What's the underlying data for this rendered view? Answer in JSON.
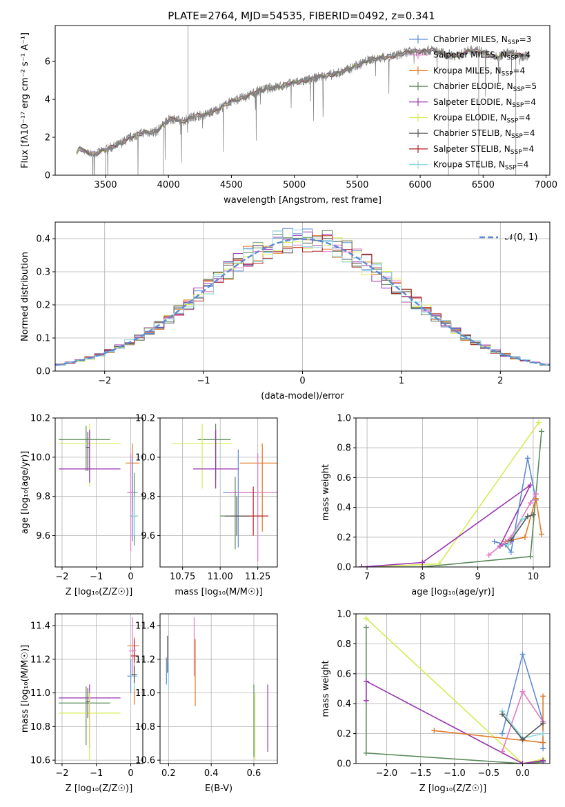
{
  "title": "PLATE=2764, MJD=54535, FIBERID=0492, z=0.341",
  "chart_data": [
    {
      "id": "spectrum",
      "type": "line",
      "xlabel": "wavelength [Angstrom, rest frame]",
      "ylabel": "Flux [f_λ 10^-17 erg cm^-2 s^-1 A^-1]",
      "xlim": [
        3100,
        7030
      ],
      "ylim": [
        0,
        7.9
      ],
      "xticks": [
        3500,
        4000,
        4500,
        5000,
        5500,
        6000,
        6500,
        7000
      ],
      "yticks": [
        0,
        2,
        4,
        6
      ],
      "grid": false,
      "legend_position": "top-right",
      "spectrum_envelope": {
        "wavelength": [
          3270,
          3290,
          3330,
          3400,
          3500,
          3600,
          3700,
          3800,
          3900,
          3950,
          4000,
          4050,
          4100,
          4200,
          4300,
          4400,
          4500,
          4600,
          4700,
          4800,
          4900,
          5000,
          5100,
          5200,
          5300,
          5400,
          5500,
          5600,
          5700,
          5800,
          5900,
          6000,
          6100,
          6200,
          6300,
          6400,
          6500,
          6600,
          6700,
          6800
        ],
        "flux": [
          1.1,
          1.45,
          1.25,
          1.1,
          1.35,
          1.6,
          2.0,
          2.25,
          2.3,
          2.6,
          2.9,
          3.0,
          2.8,
          3.1,
          3.2,
          3.5,
          3.9,
          4.1,
          4.4,
          4.6,
          4.7,
          4.9,
          5.0,
          5.2,
          5.3,
          5.5,
          5.8,
          6.1,
          6.2,
          6.3,
          6.5,
          6.55,
          6.6,
          6.4,
          6.3,
          6.6,
          6.5,
          6.2,
          6.5,
          6.3
        ]
      },
      "series": [
        {
          "name": "Chabrier MILES, N_SSP=3",
          "color": "#5b8bd6"
        },
        {
          "name": "Salpeter MILES, N_SSP=4",
          "color": "#e377c2"
        },
        {
          "name": "Kroupa MILES, N_SSP=4",
          "color": "#e07b2a"
        },
        {
          "name": "Chabrier ELODIE, N_SSP=5",
          "color": "#5a8a5a"
        },
        {
          "name": "Salpeter ELODIE, N_SSP=4",
          "color": "#9932b0"
        },
        {
          "name": "Kroupa ELODIE, N_SSP=4",
          "color": "#d7eb52"
        },
        {
          "name": "Chabrier STELIB, N_SSP=4",
          "color": "#555555"
        },
        {
          "name": "Salpeter STELIB, N_SSP=4",
          "color": "#b22222"
        },
        {
          "name": "Kroupa STELIB, N_SSP=4",
          "color": "#8fd8e0"
        }
      ],
      "data_color": "#808080"
    },
    {
      "id": "residuals",
      "type": "line",
      "xlabel": "(data-model)/error",
      "ylabel": "Normed distribution",
      "xlim": [
        -2.5,
        2.5
      ],
      "ylim": [
        0,
        0.45
      ],
      "xticks": [
        -2,
        -1,
        0,
        1,
        2
      ],
      "yticks": [
        0.0,
        0.1,
        0.2,
        0.3,
        0.4
      ],
      "grid": true,
      "legend_position": "top-right",
      "legend_entry": "𝒩(0, 1)",
      "gaussian_color": "#5b8bd6",
      "bin_width": 0.1,
      "histogram_colors": [
        "#5b8bd6",
        "#e377c2",
        "#e07b2a",
        "#5a8a5a",
        "#9932b0",
        "#d7eb52",
        "#555555",
        "#b22222",
        "#8fd8e0"
      ]
    },
    {
      "id": "age-vs-Z",
      "type": "scatter",
      "xlabel": "Z [log10(Z/Z☉)]",
      "ylabel": "age [log10(age/yr)]",
      "xlim": [
        -2.2,
        0.35
      ],
      "ylim": [
        9.44,
        10.2
      ],
      "xticks": [
        -2,
        -1,
        0
      ],
      "yticks": [
        9.6,
        9.8,
        10.0,
        10.2
      ],
      "grid": true,
      "points": [
        {
          "x": -1.3,
          "y": 10.09,
          "xerr": [
            0.8,
            0.7
          ],
          "yerr": [
            0.16,
            0.07
          ],
          "color": "#5a8a5a"
        },
        {
          "x": -1.2,
          "y": 10.07,
          "xerr": [
            0.9,
            0.9
          ],
          "yerr": [
            0.22,
            0.1
          ],
          "color": "#d7eb52"
        },
        {
          "x": -1.2,
          "y": 9.94,
          "xerr": [
            0.9,
            0.9
          ],
          "yerr": [
            0.07,
            0.2
          ],
          "color": "#9932b0"
        },
        {
          "x": -1.25,
          "y": 10.05,
          "xerr": [
            0.05,
            0.05
          ],
          "yerr": [
            0.12,
            0.08
          ],
          "color": "#555555"
        },
        {
          "x": 0.05,
          "y": 9.97,
          "xerr": [
            0.2,
            0.2
          ],
          "yerr": [
            0.25,
            0.1
          ],
          "color": "#e07b2a"
        },
        {
          "x": 0.05,
          "y": 9.82,
          "xerr": [
            0.15,
            0.15
          ],
          "yerr": [
            0.25,
            0.18
          ],
          "color": "#5b8bd6"
        },
        {
          "x": 0.0,
          "y": 9.82,
          "xerr": [
            0.1,
            0.1
          ],
          "yerr": [
            0.3,
            0.2
          ],
          "color": "#e377c2"
        },
        {
          "x": 0.1,
          "y": 9.7,
          "xerr": [
            0.1,
            0.1
          ],
          "yerr": [
            0.15,
            0.22
          ],
          "color": "#5a8a5a"
        },
        {
          "x": 0.1,
          "y": 9.7,
          "xerr": [
            0.08,
            0.08
          ],
          "yerr": [
            0.1,
            0.1
          ],
          "color": "#555555"
        },
        {
          "x": 0.1,
          "y": 9.7,
          "xerr": [
            0.08,
            0.08
          ],
          "yerr": [
            0.1,
            0.1
          ],
          "color": "#8fd8e0"
        }
      ]
    },
    {
      "id": "age-vs-mass",
      "type": "scatter",
      "xlabel": "mass [log10(M/M☉)]",
      "ylabel": "",
      "xlim": [
        10.6,
        11.38
      ],
      "ylim": [
        9.44,
        10.2
      ],
      "xticks": [
        10.75,
        11.0,
        11.25
      ],
      "yticks": [
        9.6,
        9.8,
        10.0,
        10.2
      ],
      "grid": true,
      "points": [
        {
          "x": 10.97,
          "y": 10.09,
          "xerr": [
            0.12,
            0.1
          ],
          "yerr": [
            0.2,
            0.08
          ],
          "color": "#5a8a5a"
        },
        {
          "x": 10.88,
          "y": 10.07,
          "xerr": [
            0.2,
            0.2
          ],
          "yerr": [
            0.23,
            0.1
          ],
          "color": "#d7eb52"
        },
        {
          "x": 10.97,
          "y": 9.94,
          "xerr": [
            0.15,
            0.15
          ],
          "yerr": [
            0.1,
            0.2
          ],
          "color": "#9932b0"
        },
        {
          "x": 11.28,
          "y": 9.97,
          "xerr": [
            0.15,
            0.15
          ],
          "yerr": [
            0.35,
            0.1
          ],
          "color": "#e07b2a"
        },
        {
          "x": 11.12,
          "y": 9.82,
          "xerr": [
            0.1,
            0.12
          ],
          "yerr": [
            0.28,
            0.22
          ],
          "color": "#5b8bd6"
        },
        {
          "x": 11.25,
          "y": 9.82,
          "xerr": [
            0.2,
            0.15
          ],
          "yerr": [
            0.35,
            0.2
          ],
          "color": "#e377c2"
        },
        {
          "x": 11.1,
          "y": 9.7,
          "xerr": [
            0.1,
            0.1
          ],
          "yerr": [
            0.17,
            0.2
          ],
          "color": "#5a8a5a"
        },
        {
          "x": 11.22,
          "y": 9.7,
          "xerr": [
            0.1,
            0.1
          ],
          "yerr": [
            0.1,
            0.15
          ],
          "color": "#b22222"
        },
        {
          "x": 11.11,
          "y": 9.7,
          "xerr": [
            0.08,
            0.08
          ],
          "yerr": [
            0.1,
            0.1
          ],
          "color": "#555555"
        }
      ]
    },
    {
      "id": "massweight-vs-age",
      "type": "line",
      "xlabel": "age  [log10(age/yr)]",
      "ylabel": "mass weight",
      "xlim": [
        6.8,
        10.3
      ],
      "ylim": [
        0,
        1.0
      ],
      "xticks": [
        7,
        8,
        9,
        10
      ],
      "yticks": [
        0.0,
        0.2,
        0.4,
        0.6,
        0.8,
        1.0
      ],
      "grid": true,
      "series": [
        {
          "color": "#d7eb52",
          "x": [
            6.9,
            8.3,
            10.1
          ],
          "y": [
            0.0,
            0.02,
            0.97
          ]
        },
        {
          "color": "#5a8a5a",
          "x": [
            6.9,
            8.0,
            9.95,
            10.15
          ],
          "y": [
            0.0,
            0.0,
            0.07,
            0.91
          ]
        },
        {
          "color": "#9932b0",
          "x": [
            6.9,
            8.0,
            9.95,
            9.4,
            9.6
          ],
          "y": [
            0.0,
            0.03,
            0.55,
            0.14,
            0.17
          ]
        },
        {
          "color": "#5b8bd6",
          "x": [
            9.3,
            9.5,
            9.6,
            9.9,
            10.05
          ],
          "y": [
            0.17,
            0.15,
            0.1,
            0.73,
            0.45
          ]
        },
        {
          "color": "#e07b2a",
          "x": [
            9.5,
            9.85,
            10.05,
            10.15
          ],
          "y": [
            0.17,
            0.2,
            0.46,
            0.22
          ]
        },
        {
          "color": "#e377c2",
          "x": [
            9.2,
            9.6,
            9.95,
            10.05
          ],
          "y": [
            0.08,
            0.2,
            0.43,
            0.49
          ]
        },
        {
          "color": "#8fd8e0",
          "x": [
            9.55,
            9.8,
            10.0
          ],
          "y": [
            0.15,
            0.32,
            0.35
          ]
        },
        {
          "color": "#555555",
          "x": [
            9.6,
            9.9,
            10.0
          ],
          "y": [
            0.18,
            0.34,
            0.35
          ]
        }
      ]
    },
    {
      "id": "mass-vs-Z",
      "type": "scatter",
      "xlabel": "Z [log10(Z/Z☉)]",
      "ylabel": "mass [log10(M/M☉)]",
      "xlim": [
        -2.2,
        0.35
      ],
      "ylim": [
        10.58,
        11.47
      ],
      "xticks": [
        -2,
        -1,
        0
      ],
      "yticks": [
        10.6,
        10.8,
        11.0,
        11.2,
        11.4
      ],
      "grid": true,
      "points": [
        {
          "x": -1.3,
          "y": 10.94,
          "xerr": [
            0.8,
            0.7
          ],
          "yerr": [
            0.25,
            0.1
          ],
          "color": "#5a8a5a"
        },
        {
          "x": -1.2,
          "y": 10.97,
          "xerr": [
            0.9,
            0.9
          ],
          "yerr": [
            0.3,
            0.08
          ],
          "color": "#9932b0"
        },
        {
          "x": -1.2,
          "y": 10.88,
          "xerr": [
            0.9,
            0.9
          ],
          "yerr": [
            0.28,
            0.12
          ],
          "color": "#d7eb52"
        },
        {
          "x": -1.25,
          "y": 10.95,
          "xerr": [
            0.05,
            0.05
          ],
          "yerr": [
            0.1,
            0.08
          ],
          "color": "#555555"
        },
        {
          "x": 0.1,
          "y": 11.28,
          "xerr": [
            0.2,
            0.15
          ],
          "yerr": [
            0.35,
            0.05
          ],
          "color": "#e07b2a"
        },
        {
          "x": 0.1,
          "y": 11.22,
          "xerr": [
            0.1,
            0.1
          ],
          "yerr": [
            0.1,
            0.1
          ],
          "color": "#b22222"
        },
        {
          "x": 0.05,
          "y": 11.25,
          "xerr": [
            0.1,
            0.1
          ],
          "yerr": [
            0.15,
            0.2
          ],
          "color": "#e377c2"
        },
        {
          "x": 0.0,
          "y": 11.1,
          "xerr": [
            0.1,
            0.15
          ],
          "yerr": [
            0.1,
            0.1
          ],
          "color": "#5b8bd6"
        },
        {
          "x": 0.1,
          "y": 11.1,
          "xerr": [
            0.1,
            0.1
          ],
          "yerr": [
            0.08,
            0.08
          ],
          "color": "#8fd8e0"
        },
        {
          "x": 0.1,
          "y": 11.11,
          "xerr": [
            0.08,
            0.08
          ],
          "yerr": [
            0.05,
            0.05
          ],
          "color": "#555555"
        }
      ]
    },
    {
      "id": "mass-vs-EBV",
      "type": "scatter",
      "xlabel": "E(B-V)",
      "ylabel": "",
      "xlim": [
        0.16,
        0.71
      ],
      "ylim": [
        10.58,
        11.47
      ],
      "xticks": [
        0.2,
        0.4,
        0.6
      ],
      "yticks": [
        10.6,
        10.8,
        11.0,
        11.2,
        11.4
      ],
      "grid": true,
      "points": [
        {
          "x": 0.195,
          "y": 11.22,
          "xerr": [
            0,
            0
          ],
          "yerr": [
            0.1,
            0.12
          ],
          "color": "#555555"
        },
        {
          "x": 0.19,
          "y": 11.13,
          "xerr": [
            0,
            0
          ],
          "yerr": [
            0.08,
            0.08
          ],
          "color": "#5b8bd6"
        },
        {
          "x": 0.2,
          "y": 11.1,
          "xerr": [
            0,
            0
          ],
          "yerr": [
            0.08,
            0.08
          ],
          "color": "#8fd8e0"
        },
        {
          "x": 0.32,
          "y": 11.2,
          "xerr": [
            0,
            0
          ],
          "yerr": [
            0.1,
            0.25
          ],
          "color": "#e377c2"
        },
        {
          "x": 0.325,
          "y": 11.12,
          "xerr": [
            0,
            0
          ],
          "yerr": [
            0.2,
            0.2
          ],
          "color": "#e07b2a"
        },
        {
          "x": 0.6,
          "y": 10.97,
          "xerr": [
            0,
            0
          ],
          "yerr": [
            0.35,
            0.08
          ],
          "color": "#5a8a5a"
        },
        {
          "x": 0.605,
          "y": 10.85,
          "xerr": [
            0,
            0
          ],
          "yerr": [
            0.25,
            0.15
          ],
          "color": "#d7eb52"
        },
        {
          "x": 0.665,
          "y": 10.85,
          "xerr": [
            0,
            0
          ],
          "yerr": [
            0.2,
            0.2
          ],
          "color": "#9932b0"
        }
      ]
    },
    {
      "id": "massweight-vs-Z",
      "type": "line",
      "xlabel": "Z [log10(Z/Z☉)]",
      "ylabel": "mass weight",
      "xlim": [
        -2.45,
        0.4
      ],
      "ylim": [
        0,
        1.0
      ],
      "xticks": [
        -2.0,
        -1.5,
        -1.0,
        -0.5,
        0.0
      ],
      "yticks": [
        0.0,
        0.2,
        0.4,
        0.6,
        0.8,
        1.0
      ],
      "grid": true,
      "series": [
        {
          "color": "#d7eb52",
          "x": [
            -2.3,
            0.0,
            0.3
          ],
          "y": [
            0.97,
            0.0,
            0.03
          ]
        },
        {
          "color": "#5a8a5a",
          "x": [
            -2.3,
            -2.3,
            0.0,
            0.3
          ],
          "y": [
            0.91,
            0.07,
            0.0,
            0.01
          ]
        },
        {
          "color": "#9932b0",
          "x": [
            -2.3,
            -2.3,
            0.0,
            0.3
          ],
          "y": [
            0.42,
            0.55,
            0.0,
            0.02
          ]
        },
        {
          "color": "#5b8bd6",
          "x": [
            -0.3,
            0.0,
            0.3,
            0.3
          ],
          "y": [
            0.2,
            0.73,
            0.28,
            0.1
          ]
        },
        {
          "color": "#e07b2a",
          "x": [
            -1.3,
            0.3,
            0.3
          ],
          "y": [
            0.22,
            0.14,
            0.45
          ]
        },
        {
          "color": "#e377c2",
          "x": [
            -0.3,
            0.0,
            0.3
          ],
          "y": [
            0.08,
            0.48,
            0.28
          ]
        },
        {
          "color": "#8fd8e0",
          "x": [
            -0.3,
            0.0,
            0.3
          ],
          "y": [
            0.35,
            0.17,
            0.2
          ]
        },
        {
          "color": "#555555",
          "x": [
            -0.3,
            0.0,
            0.3
          ],
          "y": [
            0.33,
            0.16,
            0.27
          ]
        }
      ]
    }
  ]
}
